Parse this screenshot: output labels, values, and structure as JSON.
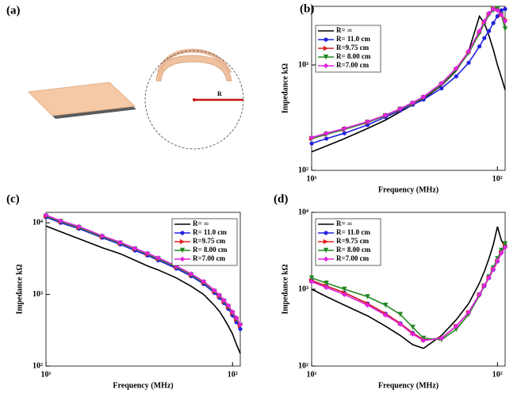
{
  "diagram": {
    "label": "(a)",
    "radius_label": "R"
  },
  "chart_data": [
    {
      "type": "line",
      "panel_label": "(b)",
      "x_label": "Frequency (MHz)",
      "y_label": "Impedance kΩ",
      "log_x": true,
      "log_y": true,
      "legend": "upper left",
      "x": [
        10,
        12,
        15,
        20,
        25,
        30,
        35,
        40,
        50,
        60,
        70,
        80,
        85,
        90,
        95,
        100,
        105,
        110
      ],
      "xlim": [
        10,
        110
      ],
      "xticks": [
        {
          "value": 10,
          "label": "10¹"
        },
        {
          "value": 100,
          "label": "10²"
        }
      ],
      "ylim": [
        100,
        3600
      ],
      "yticks": [
        {
          "value": 100,
          "label": "10²"
        },
        {
          "value": 1000,
          "label": "10³"
        }
      ],
      "series": [
        {
          "name": "R= ∞",
          "color": "#000000",
          "marker": null,
          "values": [
            150,
            170,
            200,
            250,
            300,
            360,
            420,
            480,
            640,
            880,
            1350,
            2900,
            2500,
            1900,
            1400,
            1000,
            760,
            580
          ]
        },
        {
          "name": "R= 11.0 cm",
          "color": "#2222dd",
          "marker": "circle",
          "values": [
            180,
            200,
            225,
            270,
            320,
            370,
            420,
            470,
            600,
            780,
            1050,
            1500,
            1800,
            2100,
            2500,
            2900,
            3300,
            3400
          ]
        },
        {
          "name": "R=9.75 cm",
          "color": "#dd2222",
          "marker": "triangle-right",
          "values": [
            200,
            220,
            245,
            285,
            330,
            380,
            430,
            490,
            650,
            900,
            1300,
            2000,
            2500,
            3000,
            3400,
            3400,
            3000,
            2700
          ]
        },
        {
          "name": "R= 8.00 cm",
          "color": "#228822",
          "marker": "triangle-down",
          "values": [
            200,
            220,
            245,
            285,
            330,
            380,
            430,
            490,
            650,
            900,
            1300,
            2000,
            2500,
            3000,
            3300,
            3400,
            3000,
            2200
          ]
        },
        {
          "name": "R=7.00 cm",
          "color": "#e022e0",
          "marker": "diamond",
          "values": [
            205,
            225,
            250,
            290,
            335,
            385,
            440,
            500,
            670,
            930,
            1350,
            2100,
            2600,
            3100,
            3400,
            3300,
            3000,
            2600
          ]
        }
      ]
    },
    {
      "type": "line",
      "panel_label": "(c)",
      "x_label": "Frequency (MHz)",
      "y_label": "Impedance kΩ",
      "log_x": true,
      "log_y": true,
      "legend": "upper right",
      "x": [
        10,
        12,
        15,
        20,
        25,
        30,
        35,
        40,
        50,
        60,
        70,
        80,
        85,
        90,
        95,
        100,
        105,
        110
      ],
      "xlim": [
        10,
        110
      ],
      "xticks": [
        {
          "value": 10,
          "label": "10¹"
        },
        {
          "value": 100,
          "label": "10²"
        }
      ],
      "ylim": [
        100,
        14000
      ],
      "yticks": [
        {
          "value": 100,
          "label": "10²"
        },
        {
          "value": 1000,
          "label": "10³"
        },
        {
          "value": 10000,
          "label": "10⁴"
        }
      ],
      "series": [
        {
          "name": "R= ∞",
          "color": "#000000",
          "marker": null,
          "values": [
            9000,
            7500,
            6000,
            4500,
            3700,
            3000,
            2500,
            2200,
            1700,
            1300,
            1000,
            700,
            580,
            460,
            360,
            280,
            200,
            150
          ]
        },
        {
          "name": "R= 11.0 cm",
          "color": "#2222dd",
          "marker": "circle",
          "values": [
            12000,
            10000,
            8300,
            6200,
            5000,
            4100,
            3500,
            3000,
            2300,
            1800,
            1400,
            1050,
            900,
            760,
            630,
            510,
            410,
            330
          ]
        },
        {
          "name": "R=9.75 cm",
          "color": "#dd2222",
          "marker": "triangle-right",
          "values": [
            12400,
            10400,
            8600,
            6400,
            5200,
            4300,
            3650,
            3150,
            2400,
            1880,
            1470,
            1100,
            950,
            800,
            670,
            550,
            450,
            370
          ]
        },
        {
          "name": "R= 8.00 cm",
          "color": "#228822",
          "marker": "triangle-down",
          "values": [
            12400,
            10400,
            8600,
            6400,
            5200,
            4300,
            3650,
            3150,
            2400,
            1880,
            1470,
            1100,
            950,
            800,
            670,
            550,
            450,
            370
          ]
        },
        {
          "name": "R=7.00 cm",
          "color": "#e022e0",
          "marker": "diamond",
          "values": [
            12800,
            10700,
            8900,
            6600,
            5350,
            4400,
            3750,
            3250,
            2480,
            1940,
            1520,
            1140,
            980,
            830,
            700,
            570,
            470,
            380
          ]
        }
      ]
    },
    {
      "type": "line",
      "panel_label": "(d)",
      "x_label": "Frequency (MHz)",
      "y_label": "Impedance kΩ",
      "log_x": true,
      "log_y": true,
      "legend": "upper left",
      "x": [
        10,
        12,
        15,
        20,
        25,
        30,
        35,
        40,
        50,
        60,
        70,
        80,
        85,
        90,
        95,
        100,
        105,
        110
      ],
      "xlim": [
        10,
        110
      ],
      "xticks": [
        {
          "value": 10,
          "label": "10¹"
        },
        {
          "value": 100,
          "label": "10²"
        }
      ],
      "ylim": [
        100,
        10000
      ],
      "yticks": [
        {
          "value": 100,
          "label": "10²"
        },
        {
          "value": 1000,
          "label": "10³"
        },
        {
          "value": 10000,
          "label": "10⁴"
        }
      ],
      "series": [
        {
          "name": "R= ∞",
          "color": "#000000",
          "marker": null,
          "values": [
            1000,
            800,
            620,
            450,
            330,
            250,
            190,
            170,
            250,
            400,
            650,
            1200,
            1700,
            2500,
            3800,
            6500,
            4300,
            3600
          ]
        },
        {
          "name": "R= 11.0 cm",
          "color": "#2222dd",
          "marker": "circle",
          "values": [
            1300,
            1100,
            900,
            650,
            480,
            360,
            270,
            220,
            230,
            330,
            500,
            850,
            1100,
            1400,
            1800,
            2300,
            3000,
            3700
          ]
        },
        {
          "name": "R=9.75 cm",
          "color": "#dd2222",
          "marker": "triangle-right",
          "values": [
            1300,
            1100,
            900,
            650,
            480,
            360,
            270,
            220,
            230,
            330,
            500,
            850,
            1100,
            1400,
            1800,
            2300,
            3000,
            3700
          ]
        },
        {
          "name": "R= 8.00 cm",
          "color": "#228822",
          "marker": "triangle-down",
          "values": [
            1400,
            1200,
            1000,
            800,
            620,
            470,
            320,
            230,
            220,
            300,
            470,
            830,
            1100,
            1450,
            1900,
            2500,
            3200,
            3900
          ]
        },
        {
          "name": "R=7.00 cm",
          "color": "#e022e0",
          "marker": "diamond",
          "values": [
            1250,
            1050,
            850,
            620,
            460,
            350,
            260,
            215,
            230,
            330,
            500,
            860,
            1120,
            1420,
            1820,
            2330,
            2950,
            3500
          ]
        }
      ]
    }
  ]
}
